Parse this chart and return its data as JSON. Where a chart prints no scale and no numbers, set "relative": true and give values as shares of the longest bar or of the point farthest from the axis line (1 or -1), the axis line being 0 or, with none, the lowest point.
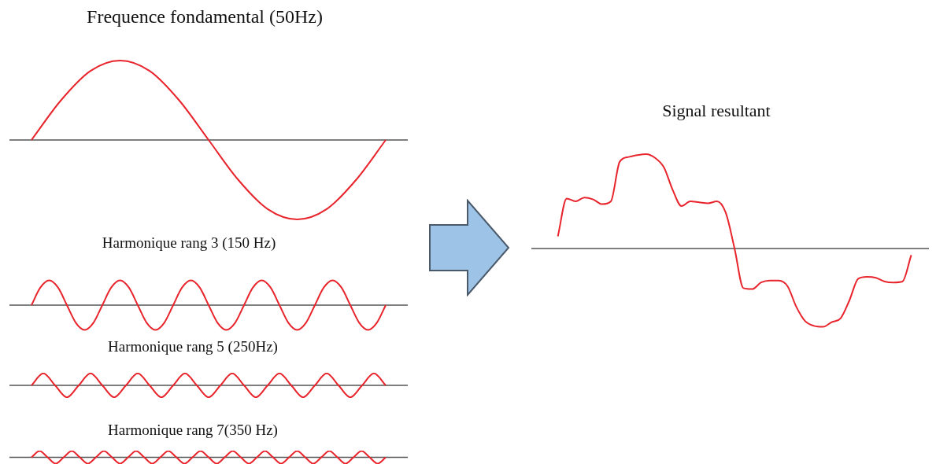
{
  "chart_data": [
    {
      "type": "line",
      "title": "Frequence fondamental (50Hz)",
      "relative": true,
      "categories": [
        null,
        null,
        null,
        null,
        null,
        null,
        null,
        null,
        null,
        null,
        null,
        null,
        null
      ],
      "series": [
        {
          "color": "#e8242c",
          "values": [
            0,
            0.5,
            0.87,
            1,
            0.87,
            0.5,
            0,
            -0.5,
            -0.87,
            -1,
            -0.87,
            -0.5,
            0
          ]
        }
      ]
    },
    {
      "type": "line",
      "title": "Harmonique rang 3 (150 Hz)",
      "relative": true,
      "categories": [
        null,
        null,
        null,
        null,
        null,
        null,
        null,
        null,
        null,
        null,
        null,
        null,
        null,
        null,
        null,
        null,
        null,
        null,
        null,
        null,
        null,
        null,
        null,
        null,
        null,
        null,
        null,
        null,
        null,
        null,
        null,
        null,
        null,
        null,
        null,
        null,
        null,
        null,
        null,
        null,
        null
      ],
      "series": [
        {
          "color": "#e8242c",
          "values": [
            0,
            0.71,
            1,
            0.71,
            0,
            -0.71,
            -1,
            -0.71,
            0,
            0.71,
            1,
            0.71,
            0,
            -0.71,
            -1,
            -0.71,
            0,
            0.71,
            1,
            0.71,
            0,
            -0.71,
            -1,
            -0.71,
            0,
            0.71,
            1,
            0.71,
            0,
            -0.71,
            -1,
            -0.71,
            0,
            0.71,
            1,
            0.71,
            0,
            -0.71,
            -1,
            -0.71,
            0
          ]
        }
      ]
    },
    {
      "type": "line",
      "title": "Harmonique rang 5 (250Hz)",
      "relative": true,
      "categories": [
        null,
        null,
        null,
        null,
        null,
        null,
        null,
        null,
        null,
        null,
        null,
        null,
        null,
        null,
        null,
        null,
        null,
        null,
        null,
        null,
        null,
        null,
        null,
        null,
        null,
        null,
        null,
        null,
        null,
        null,
        null
      ],
      "series": [
        {
          "color": "#e8242c",
          "values": [
            0,
            1,
            0,
            -1,
            0,
            1,
            0,
            -1,
            0,
            1,
            0,
            -1,
            0,
            1,
            0,
            -1,
            0,
            1,
            0,
            -1,
            0,
            1,
            0,
            -1,
            0,
            1,
            0,
            -1,
            0,
            1,
            0
          ]
        }
      ]
    },
    {
      "type": "line",
      "title": "Harmonique rang 7(350 Hz)",
      "relative": true,
      "categories": [
        null,
        null,
        null,
        null,
        null,
        null,
        null,
        null,
        null,
        null,
        null,
        null,
        null,
        null,
        null,
        null,
        null,
        null,
        null,
        null,
        null,
        null,
        null,
        null,
        null,
        null,
        null,
        null,
        null,
        null,
        null,
        null,
        null,
        null,
        null,
        null,
        null,
        null,
        null,
        null,
        null,
        null,
        null,
        null,
        null
      ],
      "series": [
        {
          "color": "#e8242c",
          "values": [
            0,
            1,
            0,
            -1,
            0,
            1,
            0,
            -1,
            0,
            1,
            0,
            -1,
            0,
            1,
            0,
            -1,
            0,
            1,
            0,
            -1,
            0,
            1,
            0,
            -1,
            0,
            1,
            0,
            -1,
            0,
            1,
            0,
            -1,
            0,
            1,
            0,
            -1,
            0,
            1,
            0,
            -1,
            0,
            1,
            0,
            -1,
            0
          ]
        }
      ]
    },
    {
      "type": "line",
      "title": "Signal resultant",
      "relative": true,
      "categories": [
        null,
        null,
        null,
        null,
        null,
        null,
        null,
        null,
        null,
        null,
        null,
        null,
        null,
        null,
        null,
        null,
        null,
        null,
        null,
        null,
        null,
        null,
        null,
        null,
        null,
        null,
        null,
        null,
        null,
        null,
        null,
        null,
        null,
        null,
        null,
        null,
        null,
        null,
        null,
        null,
        null,
        null,
        null,
        null,
        null,
        null
      ],
      "series": [
        {
          "color": "#e8242c",
          "values": [
            null,
            null,
            null,
            0.13,
            0.53,
            0.5,
            0.54,
            0.52,
            0.47,
            0.5,
            0.92,
            0.97,
            0.99,
            1,
            0.96,
            0.86,
            0.62,
            0.45,
            0.5,
            0.49,
            0.48,
            0.5,
            0.38,
            0,
            -0.42,
            -0.43,
            -0.36,
            -0.34,
            -0.34,
            -0.4,
            -0.62,
            -0.77,
            -0.82,
            -0.83,
            -0.78,
            -0.74,
            -0.55,
            -0.32,
            -0.3,
            -0.31,
            -0.35,
            -0.36,
            -0.35,
            -0.07,
            null,
            null
          ]
        }
      ]
    }
  ]
}
